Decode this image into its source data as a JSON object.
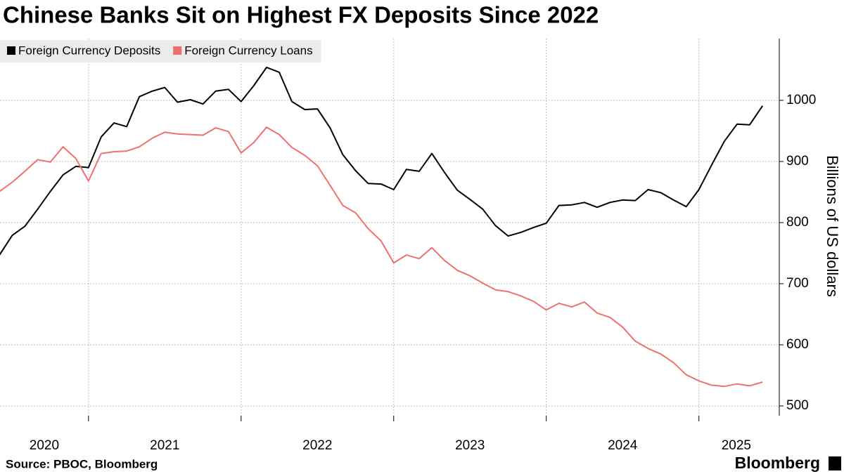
{
  "chart_data": {
    "type": "line",
    "title": "Chinese Banks Sit on Highest FX Deposits Since 2022",
    "y_label": "Billions of US dollars",
    "source": "Source: PBOC, Bloomberg",
    "brand": "Bloomberg",
    "x": [
      2020.417,
      2020.5,
      2020.583,
      2020.667,
      2020.75,
      2020.833,
      2020.917,
      2021,
      2021.083,
      2021.167,
      2021.25,
      2021.333,
      2021.417,
      2021.5,
      2021.583,
      2021.667,
      2021.75,
      2021.833,
      2021.917,
      2022,
      2022.083,
      2022.167,
      2022.25,
      2022.333,
      2022.417,
      2022.5,
      2022.583,
      2022.667,
      2022.75,
      2022.833,
      2022.917,
      2023,
      2023.083,
      2023.167,
      2023.25,
      2023.333,
      2023.417,
      2023.5,
      2023.583,
      2023.667,
      2023.75,
      2023.833,
      2023.917,
      2024,
      2024.083,
      2024.167,
      2024.25,
      2024.333,
      2024.417,
      2024.5,
      2024.583,
      2024.667,
      2024.75,
      2024.833,
      2024.917,
      2025,
      2025.083,
      2025.167,
      2025.25,
      2025.333,
      2025.417
    ],
    "series": [
      {
        "name": "Foreign Currency Deposits",
        "color": "#000000",
        "values": [
          747,
          779,
          794,
          822,
          851,
          878,
          892,
          890,
          940,
          963,
          957,
          1006,
          1015,
          1021,
          997,
          1001,
          994,
          1015,
          1018,
          998,
          1024,
          1054,
          1046,
          998,
          985,
          986,
          955,
          911,
          885,
          864,
          863,
          854,
          887,
          884,
          913,
          882,
          853,
          838,
          822,
          795,
          778,
          784,
          792,
          799,
          828,
          829,
          833,
          825,
          833,
          837,
          836,
          854,
          849,
          837,
          826,
          854,
          894,
          933,
          961,
          960,
          991
        ]
      },
      {
        "name": "Foreign Currency Loans",
        "color": "#f07070",
        "values": [
          851,
          866,
          884,
          903,
          899,
          924,
          905,
          868,
          913,
          916,
          917,
          924,
          938,
          948,
          945,
          944,
          943,
          955,
          949,
          914,
          931,
          956,
          944,
          923,
          910,
          893,
          861,
          828,
          816,
          790,
          770,
          734,
          747,
          741,
          759,
          738,
          722,
          713,
          701,
          690,
          687,
          680,
          671,
          657,
          668,
          662,
          670,
          652,
          645,
          629,
          606,
          594,
          585,
          571,
          551,
          541,
          534,
          532,
          536,
          533,
          539
        ]
      }
    ],
    "xlim": [
      2020.42,
      2025.49
    ],
    "xticks": [
      2021,
      2022,
      2023,
      2024,
      2025
    ],
    "x_labels": [
      "2020",
      "2021",
      "2022",
      "2023",
      "2024",
      "2025"
    ],
    "ylim": [
      484,
      1101
    ],
    "yticks": [
      500,
      600,
      700,
      800,
      900,
      1000
    ],
    "grid": true,
    "legend": "top-left"
  }
}
